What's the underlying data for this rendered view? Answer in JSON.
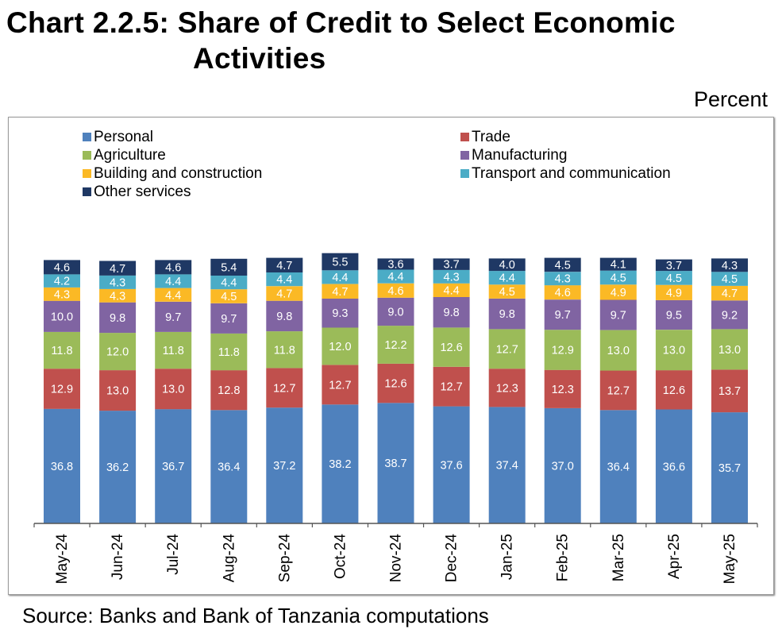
{
  "header": {
    "title_line1": "Chart 2.2.5: Share of Credit to Select Economic",
    "title_line2": "Activities",
    "unit": "Percent"
  },
  "footer": {
    "source": "Source: Banks and Bank of Tanzania computations"
  },
  "chart_data": {
    "type": "bar",
    "stacked": true,
    "title": "Chart 2.2.5: Share of Credit to Select Economic Activities",
    "ylabel": "Percent",
    "xlabel": "",
    "ylim": [
      0,
      100
    ],
    "legend_position": "top",
    "categories": [
      "May-24",
      "Jun-24",
      "Jul-24",
      "Aug-24",
      "Sep-24",
      "Oct-24",
      "Nov-24",
      "Dec-24",
      "Jan-25",
      "Feb-25",
      "Mar-25",
      "Apr-25",
      "May-25"
    ],
    "series": [
      {
        "name": "Personal",
        "color": "#4f81bd",
        "values": [
          36.8,
          36.2,
          36.7,
          36.4,
          37.2,
          38.2,
          38.7,
          37.6,
          37.4,
          37.0,
          36.4,
          36.6,
          35.7
        ]
      },
      {
        "name": "Trade",
        "color": "#c0504d",
        "values": [
          12.9,
          13.0,
          13.0,
          12.8,
          12.7,
          12.7,
          12.6,
          12.7,
          12.3,
          12.3,
          12.7,
          12.6,
          13.7
        ]
      },
      {
        "name": "Agriculture",
        "color": "#9bbb59",
        "values": [
          11.8,
          12.0,
          11.8,
          11.8,
          11.8,
          12.0,
          12.2,
          12.6,
          12.7,
          12.9,
          13.0,
          13.0,
          13.0
        ]
      },
      {
        "name": "Manufacturing",
        "color": "#8064a2",
        "values": [
          10.0,
          9.8,
          9.7,
          9.7,
          9.8,
          9.3,
          9.0,
          9.8,
          9.8,
          9.7,
          9.7,
          9.5,
          9.2
        ]
      },
      {
        "name": "Building and construction",
        "color": "#fbb925",
        "values": [
          4.3,
          4.3,
          4.4,
          4.5,
          4.7,
          4.7,
          4.6,
          4.4,
          4.5,
          4.6,
          4.9,
          4.9,
          4.7
        ]
      },
      {
        "name": "Transport and communication",
        "color": "#4bacc6",
        "values": [
          4.2,
          4.3,
          4.4,
          4.4,
          4.4,
          4.4,
          4.4,
          4.3,
          4.4,
          4.3,
          4.5,
          4.5,
          4.5
        ]
      },
      {
        "name": "Other services",
        "color": "#1f3864",
        "values": [
          4.6,
          4.7,
          4.6,
          5.4,
          4.7,
          5.5,
          3.6,
          3.7,
          4.0,
          4.5,
          4.1,
          3.7,
          4.3
        ]
      }
    ],
    "legend_order": [
      "Personal",
      "Trade",
      "Agriculture",
      "Manufacturing",
      "Building and construction",
      "Transport and communication",
      "Other services"
    ]
  }
}
